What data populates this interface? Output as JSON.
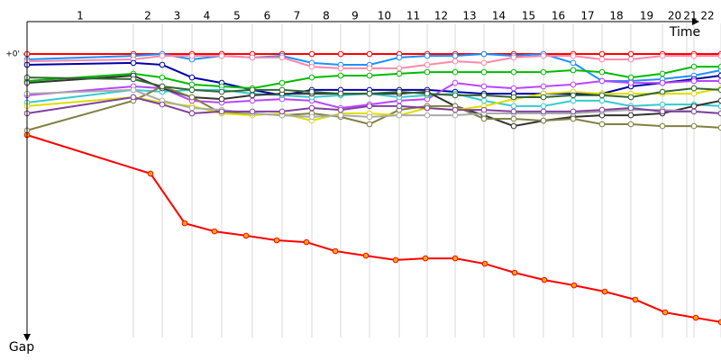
{
  "chart_data": {
    "type": "line",
    "x_label": "Time",
    "y_label": "Gap",
    "xlim": [
      30,
      800
    ],
    "xticks": [
      148,
      180,
      213,
      246,
      280,
      313,
      346,
      378,
      410,
      443,
      474,
      505,
      537,
      570,
      603,
      636,
      668,
      700,
      735,
      762,
      770,
      800
    ],
    "lap_labels": [
      "1",
      "2",
      "3",
      "4",
      "5",
      "6",
      "7",
      "8",
      "9",
      "10",
      "11",
      "12",
      "13",
      "14",
      "15",
      "16",
      "17",
      "18",
      "19",
      "20",
      "21",
      "22"
    ],
    "ylim": [
      -8,
      105
    ],
    "yticks": [
      {
        "value": 0,
        "label": "+0'"
      }
    ],
    "x": [
      30,
      148,
      180,
      213,
      246,
      280,
      313,
      346,
      378,
      410,
      443,
      474,
      505,
      537,
      570,
      603,
      636,
      668,
      700,
      735,
      770,
      800
    ],
    "series": [
      {
        "color": "#ff0000",
        "values": [
          0,
          0,
          0,
          0,
          0,
          0,
          0,
          0,
          0,
          0,
          0,
          0,
          0,
          0,
          0,
          0,
          0,
          0,
          0,
          0,
          0,
          0
        ]
      },
      {
        "color": "#1e90ff",
        "values": [
          2,
          0.7,
          0,
          2,
          0.7,
          1.3,
          0.7,
          3.3,
          4,
          4,
          1.3,
          0.7,
          0.7,
          0,
          0.7,
          0,
          3.3,
          10,
          10,
          9.3,
          8,
          6
        ]
      },
      {
        "color": "#ff88aa",
        "values": [
          2.7,
          2,
          0.7,
          0.7,
          0.7,
          1.3,
          1.3,
          4.7,
          5.3,
          5.3,
          5.3,
          4,
          2.7,
          3.3,
          1.3,
          0.7,
          0.7,
          2,
          2,
          0.7,
          0.7,
          0.7
        ]
      },
      {
        "color": "#0000aa",
        "values": [
          4,
          3.3,
          4,
          8.7,
          10.7,
          13.3,
          15.3,
          13.3,
          13.3,
          13.3,
          13.3,
          13.3,
          14,
          14.7,
          14.7,
          14.7,
          14.7,
          14.7,
          12,
          10.7,
          9.3,
          8
        ]
      },
      {
        "color": "#00bb00",
        "values": [
          10,
          7.3,
          8.7,
          11.3,
          12,
          12.7,
          10.7,
          8.7,
          8,
          8,
          7.3,
          6.7,
          6.7,
          6.7,
          6.7,
          6.7,
          6,
          6.7,
          8.7,
          7.3,
          4.7,
          4.7
        ]
      },
      {
        "color": "#bb44ff",
        "values": [
          15.3,
          12,
          12.7,
          17.3,
          18,
          17.3,
          16.7,
          17.3,
          20,
          18.7,
          17.3,
          16.7,
          10.7,
          12,
          12.7,
          12,
          11.3,
          10,
          10.7,
          10.7,
          10,
          10
        ]
      },
      {
        "color": "#33cccc",
        "values": [
          18,
          13.3,
          14,
          13.3,
          13.3,
          14.7,
          15.3,
          16,
          15.3,
          14.7,
          16,
          15.3,
          14.7,
          17.3,
          19.3,
          19.3,
          17.3,
          17.3,
          19.3,
          18.7,
          18.7,
          19.3
        ]
      },
      {
        "color": "#333333",
        "values": [
          10.7,
          8,
          12.7,
          16,
          16.7,
          15.3,
          14.7,
          14.7,
          14.7,
          14.7,
          14.7,
          14,
          19.3,
          22.7,
          26.7,
          24.7,
          23.3,
          22.7,
          22.7,
          22,
          19.3,
          17.3
        ]
      },
      {
        "color": "#808040",
        "values": [
          28.3,
          17.3,
          12,
          16,
          22,
          22,
          22.7,
          22,
          23.3,
          26,
          20.7,
          19.3,
          19.3,
          24,
          24,
          24.7,
          24,
          26,
          26,
          26.7,
          26.7,
          27.3
        ]
      },
      {
        "color": "#dddd00",
        "values": [
          19.3,
          16,
          18,
          19.3,
          22,
          22.7,
          22,
          24.7,
          22,
          22,
          22.7,
          20,
          20.7,
          19.3,
          16.7,
          14.7,
          14,
          14.7,
          14.7,
          14.7,
          14.7,
          12.7
        ]
      },
      {
        "color": "#aaaaaa",
        "values": [
          14.7,
          13.3,
          17.3,
          20,
          20.7,
          22,
          22.7,
          23.3,
          22.7,
          23.3,
          22.7,
          22.7,
          22.7,
          22,
          22,
          22,
          22,
          21.3,
          20.7,
          20.7,
          21.3,
          22
        ]
      },
      {
        "color": "#8040a0",
        "values": [
          22,
          16,
          18.7,
          22,
          21.3,
          21.3,
          21.3,
          20,
          20.7,
          19.3,
          19.3,
          20,
          20.7,
          20.7,
          21.3,
          21.3,
          21.3,
          20.7,
          20,
          21.3,
          21.3,
          22
        ]
      },
      {
        "color": "#336633",
        "values": [
          8.7,
          9.3,
          12,
          13.3,
          14,
          13.3,
          13.3,
          14,
          14.7,
          14.7,
          14,
          14.7,
          15.3,
          15.3,
          16,
          16,
          15.3,
          15.3,
          16,
          14,
          12.7,
          13.3
        ]
      },
      {
        "color": "#ff0000",
        "marker_color": "#ffaa00",
        "x": [
          30,
          167,
          205,
          238,
          273,
          307,
          340,
          372,
          406,
          439,
          472,
          505,
          538,
          571,
          604,
          637,
          671,
          705,
          738,
          772,
          800
        ],
        "values": [
          30,
          44.3,
          62.7,
          65.7,
          67.3,
          69,
          69.7,
          73,
          74.7,
          76.3,
          75.7,
          75.7,
          77.7,
          81,
          83.7,
          85.7,
          88,
          91,
          95.7,
          97.7,
          99.3
        ]
      }
    ]
  }
}
